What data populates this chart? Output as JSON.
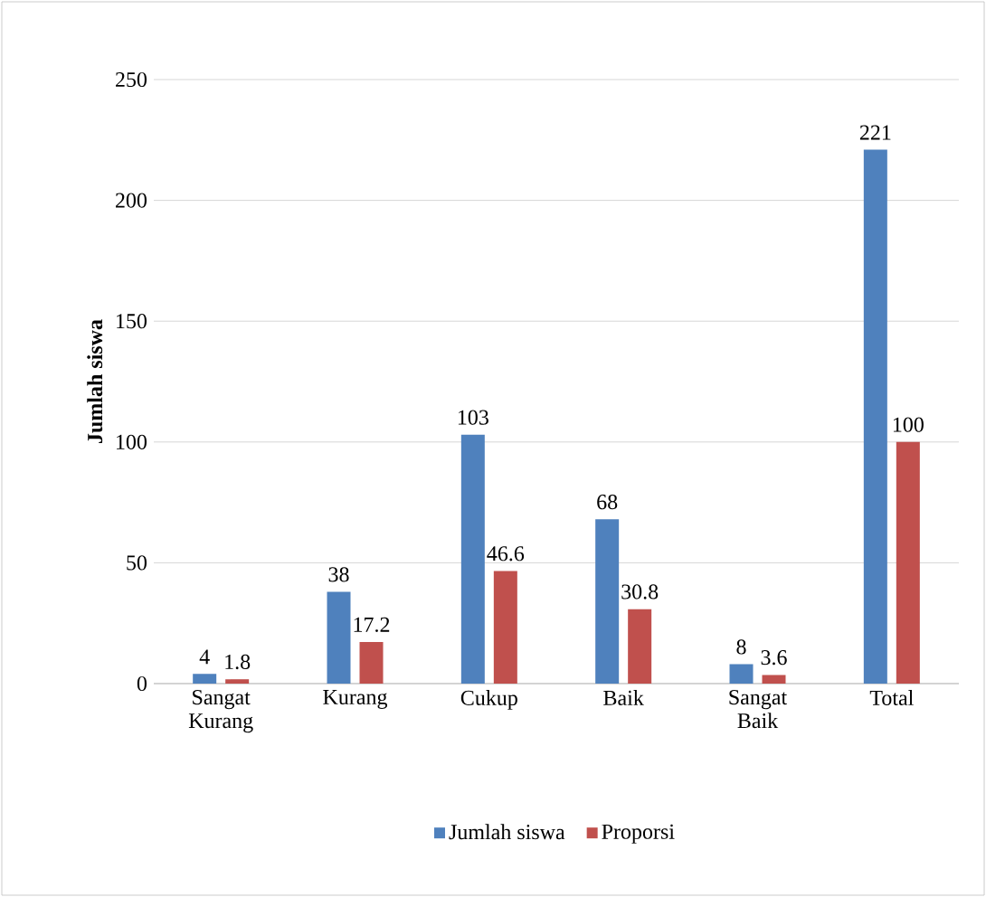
{
  "chart_data": {
    "type": "bar",
    "ylabel": "Jumlah siswa",
    "categories": [
      "Sangat Kurang",
      "Kurang",
      "Cukup",
      "Baik",
      "Sangat Baik",
      "Total"
    ],
    "series": [
      {
        "name": "Jumlah siswa",
        "color": "#4f81bd",
        "values": [
          4,
          38,
          103,
          68,
          8,
          221
        ]
      },
      {
        "name": "Proporsi",
        "color": "#c0504d",
        "values": [
          1.8,
          17.2,
          46.6,
          30.8,
          3.6,
          100
        ]
      }
    ],
    "ylim": [
      0,
      250
    ],
    "yticks": [
      0,
      50,
      100,
      150,
      200,
      250
    ],
    "grid": "y",
    "legend": "bottom",
    "data_labels": true
  }
}
